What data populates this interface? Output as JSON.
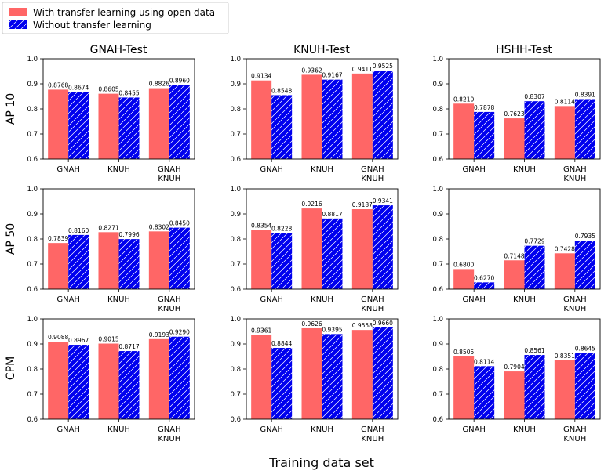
{
  "chart_data": {
    "type": "bar",
    "xlabel": "Training data set",
    "legend": {
      "placement": "top-left",
      "entries": [
        {
          "name": "With transfer learning using open data",
          "color": "#ff6666",
          "hatch": false
        },
        {
          "name": "Without transfer learning",
          "color": "#0000ee",
          "hatch": true
        }
      ]
    },
    "columns": [
      "GNAH-Test",
      "KNUH-Test",
      "HSHH-Test"
    ],
    "rows": [
      "AP 10",
      "AP 50",
      "CPM"
    ],
    "categories": [
      [
        "GNAH"
      ],
      [
        "KNUH"
      ],
      [
        "GNAH",
        "KNUH"
      ]
    ],
    "ylim": [
      0.6,
      1.0
    ],
    "yticks": [
      "0.6",
      "0.7",
      "0.8",
      "0.9",
      "1.0"
    ],
    "panels": [
      {
        "row": "AP 10",
        "column": "GNAH-Test",
        "with_transfer": [
          0.8768,
          0.8605,
          0.8826
        ],
        "without_transfer": [
          0.8674,
          0.8455,
          0.896
        ],
        "labels_with": [
          "0.8768",
          "0.8605",
          "0.8826"
        ],
        "labels_without": [
          "0.8674",
          "0.8455",
          "0.8960"
        ]
      },
      {
        "row": "AP 10",
        "column": "KNUH-Test",
        "with_transfer": [
          0.9134,
          0.9362,
          0.9411
        ],
        "without_transfer": [
          0.8548,
          0.9167,
          0.9525
        ],
        "labels_with": [
          "0.9134",
          "0.9362",
          "0.9411"
        ],
        "labels_without": [
          "0.8548",
          "0.9167",
          "0.9525"
        ]
      },
      {
        "row": "AP 10",
        "column": "HSHH-Test",
        "with_transfer": [
          0.821,
          0.7623,
          0.8114
        ],
        "without_transfer": [
          0.7878,
          0.8307,
          0.8391
        ],
        "labels_with": [
          "0.8210",
          "0.7623",
          "0.8114"
        ],
        "labels_without": [
          "0.7878",
          "0.8307",
          "0.8391"
        ]
      },
      {
        "row": "AP 50",
        "column": "GNAH-Test",
        "with_transfer": [
          0.7839,
          0.8271,
          0.8302
        ],
        "without_transfer": [
          0.816,
          0.7996,
          0.845
        ],
        "labels_with": [
          "0.7839",
          "0.8271",
          "0.8302"
        ],
        "labels_without": [
          "0.8160",
          "0.7996",
          "0.8450"
        ]
      },
      {
        "row": "AP 50",
        "column": "KNUH-Test",
        "with_transfer": [
          0.8354,
          0.9216,
          0.9187
        ],
        "without_transfer": [
          0.8228,
          0.8817,
          0.9341
        ],
        "labels_with": [
          "0.8354",
          "0.9216",
          "0.9187"
        ],
        "labels_without": [
          "0.8228",
          "0.8817",
          "0.9341"
        ]
      },
      {
        "row": "AP 50",
        "column": "HSHH-Test",
        "with_transfer": [
          0.68,
          0.7148,
          0.7428
        ],
        "without_transfer": [
          0.627,
          0.7729,
          0.7935
        ],
        "labels_with": [
          "0.6800",
          "0.7148",
          "0.7428"
        ],
        "labels_without": [
          "0.6270",
          "0.7729",
          "0.7935"
        ]
      },
      {
        "row": "CPM",
        "column": "GNAH-Test",
        "with_transfer": [
          0.9088,
          0.9015,
          0.9193
        ],
        "without_transfer": [
          0.8967,
          0.8717,
          0.929
        ],
        "labels_with": [
          "0.9088",
          "0.9015",
          "0.9193"
        ],
        "labels_without": [
          "0.8967",
          "0.8717",
          "0.9290"
        ]
      },
      {
        "row": "CPM",
        "column": "KNUH-Test",
        "with_transfer": [
          0.9361,
          0.9626,
          0.9558
        ],
        "without_transfer": [
          0.8844,
          0.9395,
          0.966
        ],
        "labels_with": [
          "0.9361",
          "0.9626",
          "0.9558"
        ],
        "labels_without": [
          "0.8844",
          "0.9395",
          "0.9660"
        ]
      },
      {
        "row": "CPM",
        "column": "HSHH-Test",
        "with_transfer": [
          0.8505,
          0.7904,
          0.8351
        ],
        "without_transfer": [
          0.8114,
          0.8561,
          0.8645
        ],
        "labels_with": [
          "0.8505",
          "0.7904",
          "0.8351"
        ],
        "labels_without": [
          "0.8114",
          "0.8561",
          "0.8645"
        ]
      }
    ]
  }
}
